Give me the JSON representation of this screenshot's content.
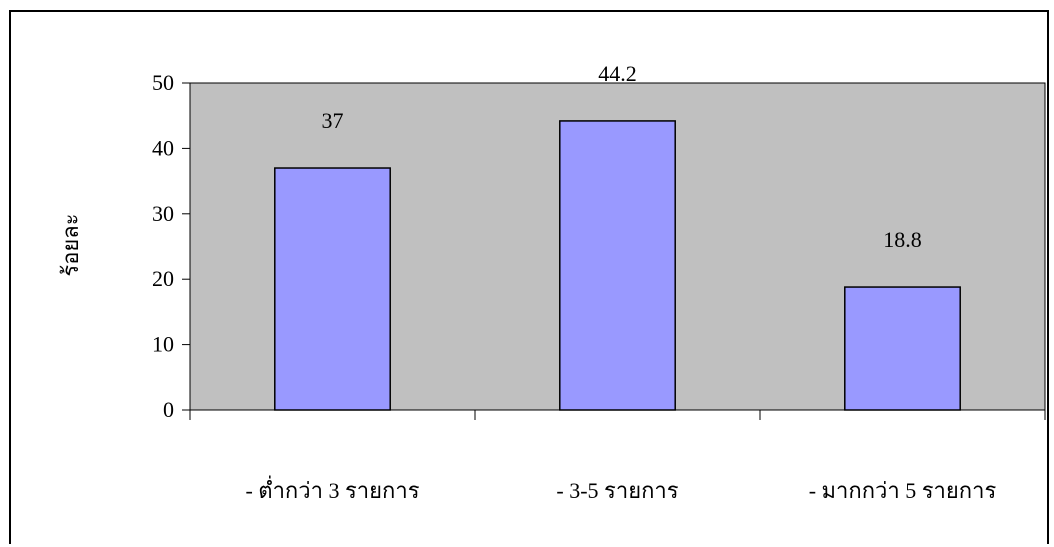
{
  "chart_data": {
    "type": "bar",
    "categories": [
      "- ต่ำกว่า 3 รายการ",
      "- 3-5 รายการ",
      "- มากกว่า 5 รายการ"
    ],
    "values": [
      37,
      44.2,
      18.8
    ],
    "data_labels": [
      "37",
      "44.2",
      "18.8"
    ],
    "ylabel": "ร้อยละ",
    "ylim": [
      0,
      50
    ],
    "yticks": [
      0,
      10,
      20,
      30,
      40,
      50
    ],
    "ytick_labels": [
      "0",
      "10",
      "20",
      "30",
      "40",
      "50"
    ],
    "grid": false,
    "colors": {
      "plot_area": "#c0c0c0",
      "bar_fill": "#9999ff",
      "bar_stroke": "#000000"
    }
  }
}
